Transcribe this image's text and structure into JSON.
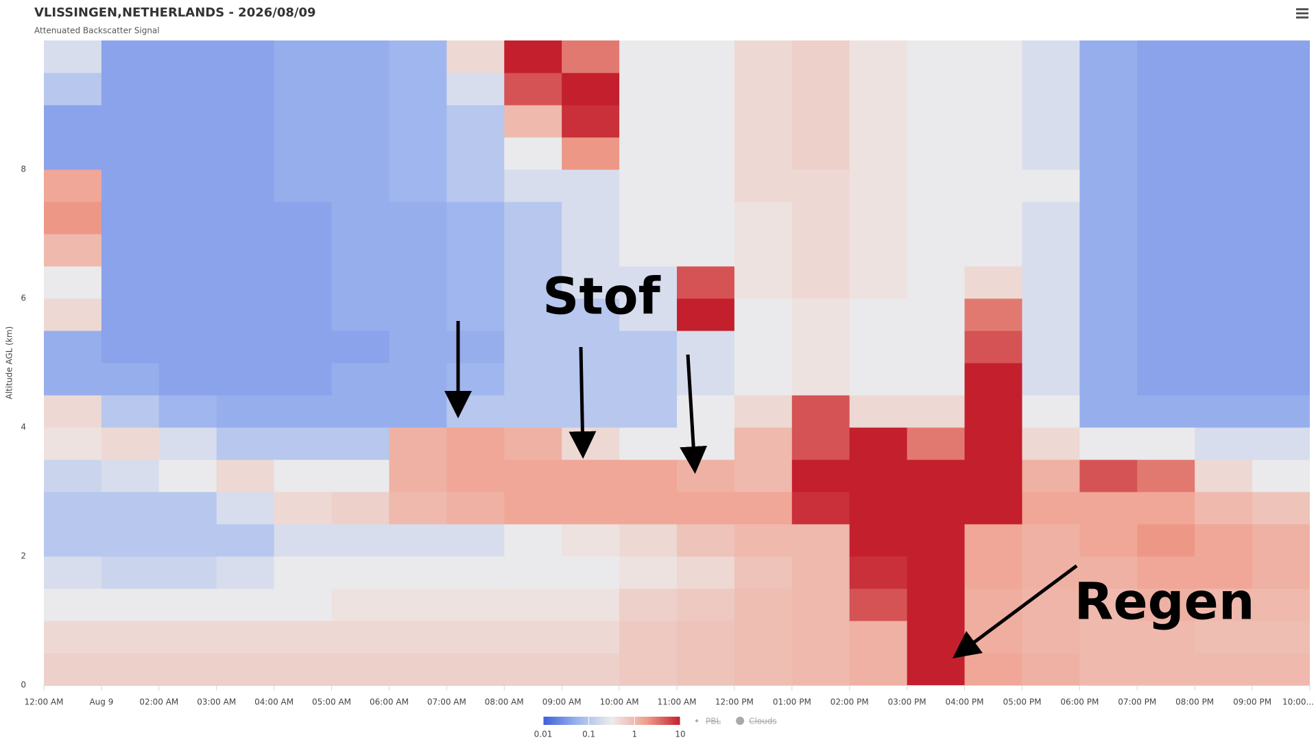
{
  "chart_data": {
    "type": "heatmap",
    "title": "VLISSINGEN,NETHERLANDS - 2026/08/09",
    "subtitle": "Attenuated Backscatter Signal",
    "y_label": "Altitude AGL (km)",
    "xlim": [
      0,
      22
    ],
    "xticks": [
      {
        "value": 0,
        "label": "12:00 AM"
      },
      {
        "value": 1,
        "label": "Aug 9"
      },
      {
        "value": 2,
        "label": "02:00 AM"
      },
      {
        "value": 3,
        "label": "03:00 AM"
      },
      {
        "value": 4,
        "label": "04:00 AM"
      },
      {
        "value": 5,
        "label": "05:00 AM"
      },
      {
        "value": 6,
        "label": "06:00 AM"
      },
      {
        "value": 7,
        "label": "07:00 AM"
      },
      {
        "value": 8,
        "label": "08:00 AM"
      },
      {
        "value": 9,
        "label": "09:00 AM"
      },
      {
        "value": 10,
        "label": "10:00 AM"
      },
      {
        "value": 11,
        "label": "11:00 AM"
      },
      {
        "value": 12,
        "label": "12:00 PM"
      },
      {
        "value": 13,
        "label": "01:00 PM"
      },
      {
        "value": 14,
        "label": "02:00 PM"
      },
      {
        "value": 15,
        "label": "03:00 PM"
      },
      {
        "value": 16,
        "label": "04:00 PM"
      },
      {
        "value": 17,
        "label": "05:00 PM"
      },
      {
        "value": 18,
        "label": "06:00 PM"
      },
      {
        "value": 19,
        "label": "07:00 PM"
      },
      {
        "value": 20,
        "label": "08:00 PM"
      },
      {
        "value": 21,
        "label": "09:00 PM"
      },
      {
        "value": 22,
        "label": "10:00..."
      }
    ],
    "ylim": [
      0,
      10
    ],
    "yticks": [
      0,
      2,
      4,
      6,
      8
    ],
    "grid": false,
    "x": [
      0,
      1,
      2,
      3,
      4,
      5,
      6,
      7,
      8,
      9,
      10,
      11,
      12,
      13,
      14,
      15,
      16,
      17,
      18,
      19,
      20,
      21
    ],
    "y": [
      0,
      0.5,
      1,
      1.5,
      2,
      2.5,
      3,
      3.5,
      4,
      4.5,
      5,
      5.5,
      6,
      6.5,
      7,
      7.5,
      8,
      8.5,
      9,
      9.5
    ],
    "z": [
      [
        0.6,
        0.6,
        0.6,
        0.6,
        0.6,
        0.6,
        0.6,
        0.6,
        0.6,
        0.6,
        0.7,
        0.8,
        0.9,
        1,
        1.2,
        10,
        1.5,
        1.2,
        1,
        1,
        1,
        1
      ],
      [
        0.5,
        0.5,
        0.5,
        0.5,
        0.5,
        0.5,
        0.5,
        0.5,
        0.5,
        0.5,
        0.7,
        0.8,
        0.9,
        1,
        1.2,
        10,
        1.3,
        1.1,
        1,
        1,
        0.9,
        0.9
      ],
      [
        0.3,
        0.3,
        0.3,
        0.3,
        0.3,
        0.4,
        0.4,
        0.4,
        0.4,
        0.4,
        0.6,
        0.7,
        0.9,
        1,
        5,
        10,
        1.3,
        1.1,
        1,
        1.2,
        1,
        1
      ],
      [
        0.2,
        0.15,
        0.15,
        0.2,
        0.3,
        0.3,
        0.3,
        0.3,
        0.3,
        0.3,
        0.4,
        0.5,
        0.8,
        1,
        8,
        10,
        1.5,
        1.2,
        1.2,
        1.5,
        1.5,
        1.2
      ],
      [
        0.1,
        0.1,
        0.1,
        0.1,
        0.2,
        0.2,
        0.2,
        0.2,
        0.3,
        0.4,
        0.5,
        0.8,
        1,
        1,
        10,
        10,
        1.5,
        1.2,
        1.5,
        2,
        1.5,
        1.2
      ],
      [
        0.1,
        0.1,
        0.1,
        0.2,
        0.5,
        0.6,
        1,
        1.2,
        1.5,
        1.5,
        1.5,
        1.5,
        1.5,
        8,
        10,
        10,
        10,
        1.5,
        1.5,
        1.5,
        1,
        0.8
      ],
      [
        0.15,
        0.2,
        0.3,
        0.5,
        0.3,
        0.3,
        1.2,
        1.5,
        1.5,
        1.5,
        1.5,
        1.2,
        1,
        10,
        10,
        10,
        10,
        1.2,
        5,
        3,
        0.5,
        0.3
      ],
      [
        0.4,
        0.5,
        0.2,
        0.1,
        0.1,
        0.1,
        1.2,
        1.5,
        1.2,
        0.5,
        0.3,
        0.3,
        1,
        5,
        10,
        3,
        10,
        0.5,
        0.3,
        0.3,
        0.2,
        0.2
      ],
      [
        0.5,
        0.1,
        0.06,
        0.05,
        0.05,
        0.05,
        0.05,
        0.1,
        0.1,
        0.1,
        0.1,
        0.3,
        0.5,
        5,
        0.5,
        0.5,
        10,
        0.3,
        0.05,
        0.05,
        0.05,
        0.05
      ],
      [
        0.05,
        0.05,
        0.04,
        0.04,
        0.04,
        0.05,
        0.05,
        0.06,
        0.1,
        0.1,
        0.1,
        0.2,
        0.3,
        0.4,
        0.3,
        0.3,
        10,
        0.2,
        0.05,
        0.04,
        0.04,
        0.04
      ],
      [
        0.05,
        0.04,
        0.04,
        0.04,
        0.04,
        0.04,
        0.05,
        0.05,
        0.1,
        0.1,
        0.1,
        0.2,
        0.3,
        0.4,
        0.3,
        0.3,
        5,
        0.2,
        0.05,
        0.04,
        0.04,
        0.04
      ],
      [
        0.5,
        0.04,
        0.04,
        0.04,
        0.04,
        0.05,
        0.05,
        0.06,
        0.1,
        0.1,
        0.2,
        10,
        0.3,
        0.4,
        0.3,
        0.3,
        3,
        0.2,
        0.05,
        0.04,
        0.04,
        0.04
      ],
      [
        0.3,
        0.04,
        0.04,
        0.04,
        0.04,
        0.05,
        0.05,
        0.06,
        0.1,
        0.2,
        0.2,
        5,
        0.4,
        0.5,
        0.4,
        0.3,
        0.5,
        0.2,
        0.05,
        0.04,
        0.04,
        0.04
      ],
      [
        1,
        0.04,
        0.04,
        0.04,
        0.04,
        0.05,
        0.05,
        0.06,
        0.1,
        0.2,
        0.3,
        0.3,
        0.4,
        0.5,
        0.4,
        0.3,
        0.3,
        0.2,
        0.05,
        0.04,
        0.04,
        0.04
      ],
      [
        2,
        0.04,
        0.04,
        0.04,
        0.04,
        0.05,
        0.05,
        0.06,
        0.1,
        0.2,
        0.3,
        0.3,
        0.4,
        0.5,
        0.4,
        0.3,
        0.3,
        0.2,
        0.05,
        0.04,
        0.04,
        0.04
      ],
      [
        1.5,
        0.04,
        0.04,
        0.04,
        0.05,
        0.05,
        0.06,
        0.1,
        0.2,
        0.2,
        0.3,
        0.3,
        0.5,
        0.5,
        0.4,
        0.3,
        0.3,
        0.3,
        0.05,
        0.04,
        0.04,
        0.04
      ],
      [
        0.04,
        0.04,
        0.04,
        0.04,
        0.05,
        0.05,
        0.06,
        0.1,
        0.3,
        2,
        0.3,
        0.3,
        0.5,
        0.6,
        0.4,
        0.3,
        0.3,
        0.2,
        0.05,
        0.04,
        0.04,
        0.04
      ],
      [
        0.04,
        0.04,
        0.04,
        0.04,
        0.05,
        0.05,
        0.06,
        0.1,
        1,
        8,
        0.3,
        0.3,
        0.5,
        0.6,
        0.4,
        0.3,
        0.3,
        0.2,
        0.05,
        0.04,
        0.04,
        0.04
      ],
      [
        0.1,
        0.04,
        0.04,
        0.04,
        0.05,
        0.05,
        0.06,
        0.2,
        5,
        10,
        0.3,
        0.3,
        0.5,
        0.6,
        0.4,
        0.3,
        0.3,
        0.2,
        0.05,
        0.04,
        0.04,
        0.04
      ],
      [
        0.2,
        0.04,
        0.04,
        0.04,
        0.05,
        0.05,
        0.06,
        0.5,
        10,
        3,
        0.3,
        0.3,
        0.5,
        0.6,
        0.4,
        0.3,
        0.3,
        0.2,
        0.05,
        0.04,
        0.04,
        0.04
      ]
    ],
    "colorbar": {
      "lim": [
        0.01,
        10
      ],
      "ticks": [
        0.01,
        0.1,
        1,
        10
      ],
      "log": true,
      "colors": [
        "#3e5fd9",
        "#9db4ee",
        "#ececec",
        "#f0a08e",
        "#c31f2d"
      ]
    },
    "legend": [
      {
        "name": "PBL",
        "visible": false
      },
      {
        "name": "Clouds",
        "visible": false
      }
    ],
    "annotations": [
      {
        "text": "Stof"
      },
      {
        "text": "Regen"
      }
    ]
  }
}
